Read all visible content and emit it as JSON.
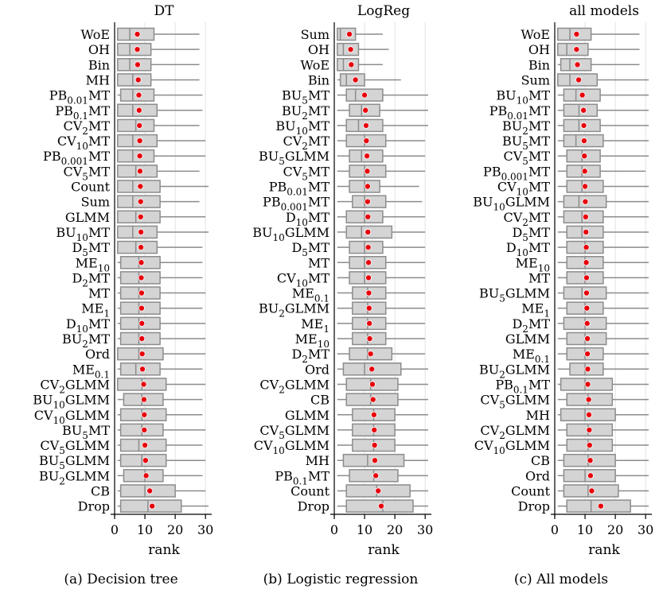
{
  "figure": {
    "captions": [
      "(a) Decision tree",
      "(b) Logistic regression",
      "(c) All models"
    ]
  },
  "chart_data": [
    {
      "type": "boxplot",
      "title": "DT",
      "xlabel": "rank",
      "xlim": [
        0,
        31
      ],
      "xticks": [
        0,
        10,
        20,
        30
      ],
      "grid": "vertical",
      "marker": "mean (red dot)",
      "categories": [
        "WoE",
        "OH",
        "Bin",
        "MH",
        "PB_{0.01}MT",
        "PB_{0.1}MT",
        "CV_{2}MT",
        "CV_{10}MT",
        "PB_{0.001}MT",
        "CV_{5}MT",
        "Count",
        "Sum",
        "GLMM",
        "BU_{10}MT",
        "D_{5}MT",
        "ME_{10}",
        "D_{2}MT",
        "MT",
        "ME_{1}",
        "D_{10}MT",
        "BU_{2}MT",
        "Ord",
        "ME_{0.1}",
        "CV_{2}GLMM",
        "BU_{10}GLMM",
        "CV_{10}GLMM",
        "BU_{5}MT",
        "CV_{5}GLMM",
        "BU_{5}GLMM",
        "BU_{2}GLMM",
        "CB",
        "Drop"
      ],
      "boxes": [
        {
          "whislo": 1,
          "q1": 1,
          "median": 5,
          "q3": 13,
          "whishi": 28,
          "mean": 7.5
        },
        {
          "whislo": 1,
          "q1": 1,
          "median": 5,
          "q3": 12,
          "whishi": 28,
          "mean": 7.5
        },
        {
          "whislo": 1,
          "q1": 1,
          "median": 5,
          "q3": 12,
          "whishi": 28,
          "mean": 7.6
        },
        {
          "whislo": 1,
          "q1": 1,
          "median": 6,
          "q3": 12,
          "whishi": 28,
          "mean": 7.8
        },
        {
          "whislo": 1,
          "q1": 2,
          "median": 6,
          "q3": 13,
          "whishi": 29,
          "mean": 8.0
        },
        {
          "whislo": 1,
          "q1": 1,
          "median": 6,
          "q3": 14,
          "whishi": 29,
          "mean": 8.1
        },
        {
          "whislo": 1,
          "q1": 1,
          "median": 7,
          "q3": 13,
          "whishi": 28,
          "mean": 8.2
        },
        {
          "whislo": 1,
          "q1": 1,
          "median": 6,
          "q3": 14,
          "whishi": 30,
          "mean": 8.3
        },
        {
          "whislo": 1,
          "q1": 1,
          "median": 6,
          "q3": 13,
          "whishi": 30,
          "mean": 8.3
        },
        {
          "whislo": 1,
          "q1": 1,
          "median": 7,
          "q3": 14,
          "whishi": 28,
          "mean": 8.4
        },
        {
          "whislo": 1,
          "q1": 1,
          "median": 6,
          "q3": 15,
          "whishi": 31,
          "mean": 8.5
        },
        {
          "whislo": 1,
          "q1": 1,
          "median": 6,
          "q3": 15,
          "whishi": 28,
          "mean": 8.6
        },
        {
          "whislo": 1,
          "q1": 1,
          "median": 7,
          "q3": 15,
          "whishi": 30,
          "mean": 8.6
        },
        {
          "whislo": 1,
          "q1": 1,
          "median": 6,
          "q3": 14,
          "whishi": 31,
          "mean": 8.7
        },
        {
          "whislo": 1,
          "q1": 1,
          "median": 7,
          "q3": 14,
          "whishi": 29,
          "mean": 8.7
        },
        {
          "whislo": 1,
          "q1": 2,
          "median": 8,
          "q3": 15,
          "whishi": 29,
          "mean": 8.8
        },
        {
          "whislo": 1,
          "q1": 2,
          "median": 8,
          "q3": 15,
          "whishi": 29,
          "mean": 8.8
        },
        {
          "whislo": 1,
          "q1": 2,
          "median": 8,
          "q3": 15,
          "whishi": 30,
          "mean": 8.9
        },
        {
          "whislo": 1,
          "q1": 2,
          "median": 8,
          "q3": 15,
          "whishi": 29,
          "mean": 8.9
        },
        {
          "whislo": 1,
          "q1": 2,
          "median": 8,
          "q3": 15,
          "whishi": 30,
          "mean": 9.0
        },
        {
          "whislo": 1,
          "q1": 2,
          "median": 8,
          "q3": 15,
          "whishi": 30,
          "mean": 9.0
        },
        {
          "whislo": 1,
          "q1": 1,
          "median": 8,
          "q3": 16,
          "whishi": 30,
          "mean": 9.1
        },
        {
          "whislo": 1,
          "q1": 2,
          "median": 7,
          "q3": 15,
          "whishi": 29,
          "mean": 9.2
        },
        {
          "whislo": 1,
          "q1": 1,
          "median": 9,
          "q3": 17,
          "whishi": 30,
          "mean": 9.6
        },
        {
          "whislo": 1,
          "q1": 3,
          "median": 9,
          "q3": 16,
          "whishi": 29,
          "mean": 9.7
        },
        {
          "whislo": 1,
          "q1": 2,
          "median": 9,
          "q3": 17,
          "whishi": 29,
          "mean": 9.8
        },
        {
          "whislo": 1,
          "q1": 2,
          "median": 9,
          "q3": 16,
          "whishi": 30,
          "mean": 9.8
        },
        {
          "whislo": 1,
          "q1": 2,
          "median": 8,
          "q3": 17,
          "whishi": 29,
          "mean": 10.0
        },
        {
          "whislo": 1,
          "q1": 2,
          "median": 9,
          "q3": 17,
          "whishi": 30,
          "mean": 10.2
        },
        {
          "whislo": 1,
          "q1": 3,
          "median": 10,
          "q3": 16,
          "whishi": 29,
          "mean": 10.4
        },
        {
          "whislo": 1,
          "q1": 2,
          "median": 10,
          "q3": 20,
          "whishi": 30,
          "mean": 11.6
        },
        {
          "whislo": 1,
          "q1": 2,
          "median": 11,
          "q3": 22,
          "whishi": 31,
          "mean": 12.4
        }
      ]
    },
    {
      "type": "boxplot",
      "title": "LogReg",
      "xlabel": "rank",
      "xlim": [
        0,
        31
      ],
      "xticks": [
        0,
        10,
        20,
        30
      ],
      "grid": "vertical",
      "marker": "mean (red dot)",
      "categories": [
        "Sum",
        "OH",
        "WoE",
        "Bin",
        "BU_{5}MT",
        "BU_{2}MT",
        "BU_{10}MT",
        "CV_{2}MT",
        "BU_{5}GLMM",
        "CV_{5}MT",
        "PB_{0.01}MT",
        "PB_{0.001}MT",
        "D_{10}MT",
        "BU_{10}GLMM",
        "D_{5}MT",
        "MT",
        "CV_{10}MT",
        "ME_{0.1}",
        "BU_{2}GLMM",
        "ME_{1}",
        "ME_{10}",
        "D_{2}MT",
        "Ord",
        "CV_{2}GLMM",
        "CB",
        "GLMM",
        "CV_{5}GLMM",
        "CV_{10}GLMM",
        "MH",
        "PB_{0.1}MT",
        "Count",
        "Drop"
      ],
      "boxes": [
        {
          "whislo": 1,
          "q1": 1,
          "median": 2,
          "q3": 7,
          "whishi": 16,
          "mean": 5.0
        },
        {
          "whislo": 1,
          "q1": 1,
          "median": 3,
          "q3": 8,
          "whishi": 18,
          "mean": 5.4
        },
        {
          "whislo": 1,
          "q1": 1,
          "median": 3,
          "q3": 8,
          "whishi": 16,
          "mean": 5.6
        },
        {
          "whislo": 1,
          "q1": 2,
          "median": 4,
          "q3": 10,
          "whishi": 22,
          "mean": 7.0
        },
        {
          "whislo": 1,
          "q1": 4,
          "median": 7,
          "q3": 16,
          "whishi": 31,
          "mean": 10.0
        },
        {
          "whislo": 1,
          "q1": 5,
          "median": 9,
          "q3": 15,
          "whishi": 31,
          "mean": 10.3
        },
        {
          "whislo": 1,
          "q1": 4,
          "median": 8,
          "q3": 16,
          "whishi": 31,
          "mean": 10.5
        },
        {
          "whislo": 1,
          "q1": 4,
          "median": 10,
          "q3": 17,
          "whishi": 30,
          "mean": 10.6
        },
        {
          "whislo": 1,
          "q1": 5,
          "median": 9,
          "q3": 16,
          "whishi": 30,
          "mean": 10.8
        },
        {
          "whislo": 1,
          "q1": 5,
          "median": 10,
          "q3": 17,
          "whishi": 30,
          "mean": 10.9
        },
        {
          "whislo": 1,
          "q1": 5,
          "median": 10,
          "q3": 15,
          "whishi": 28,
          "mean": 11.0
        },
        {
          "whislo": 1,
          "q1": 6,
          "median": 10,
          "q3": 17,
          "whishi": 29,
          "mean": 11.0
        },
        {
          "whislo": 1,
          "q1": 4,
          "median": 10,
          "q3": 16,
          "whishi": 30,
          "mean": 11.1
        },
        {
          "whislo": 1,
          "q1": 4,
          "median": 9,
          "q3": 19,
          "whishi": 30,
          "mean": 11.1
        },
        {
          "whislo": 1,
          "q1": 5,
          "median": 10,
          "q3": 16,
          "whishi": 30,
          "mean": 11.2
        },
        {
          "whislo": 1,
          "q1": 5,
          "median": 10,
          "q3": 17,
          "whishi": 30,
          "mean": 11.3
        },
        {
          "whislo": 1,
          "q1": 5,
          "median": 10,
          "q3": 17,
          "whishi": 30,
          "mean": 11.3
        },
        {
          "whislo": 1,
          "q1": 6,
          "median": 11,
          "q3": 17,
          "whishi": 30,
          "mean": 11.4
        },
        {
          "whislo": 1,
          "q1": 6,
          "median": 11,
          "q3": 17,
          "whishi": 30,
          "mean": 11.5
        },
        {
          "whislo": 1,
          "q1": 6,
          "median": 11,
          "q3": 17,
          "whishi": 30,
          "mean": 11.6
        },
        {
          "whislo": 1,
          "q1": 6,
          "median": 11,
          "q3": 17,
          "whishi": 30,
          "mean": 11.7
        },
        {
          "whislo": 1,
          "q1": 5,
          "median": 11,
          "q3": 19,
          "whishi": 30,
          "mean": 12.0
        },
        {
          "whislo": 1,
          "q1": 3,
          "median": 10,
          "q3": 22,
          "whishi": 31,
          "mean": 12.4
        },
        {
          "whislo": 1,
          "q1": 4,
          "median": 12,
          "q3": 21,
          "whishi": 31,
          "mean": 12.6
        },
        {
          "whislo": 1,
          "q1": 4,
          "median": 12,
          "q3": 21,
          "whishi": 31,
          "mean": 12.8
        },
        {
          "whislo": 1,
          "q1": 6,
          "median": 13,
          "q3": 20,
          "whishi": 31,
          "mean": 13.1
        },
        {
          "whislo": 1,
          "q1": 6,
          "median": 13,
          "q3": 20,
          "whishi": 31,
          "mean": 13.2
        },
        {
          "whislo": 1,
          "q1": 6,
          "median": 13,
          "q3": 20,
          "whishi": 31,
          "mean": 13.3
        },
        {
          "whislo": 1,
          "q1": 3,
          "median": 11,
          "q3": 23,
          "whishi": 31,
          "mean": 13.4
        },
        {
          "whislo": 1,
          "q1": 5,
          "median": 13,
          "q3": 21,
          "whishi": 31,
          "mean": 13.7
        },
        {
          "whislo": 1,
          "q1": 4,
          "median": 14,
          "q3": 25,
          "whishi": 31,
          "mean": 14.5
        },
        {
          "whislo": 1,
          "q1": 4,
          "median": 16,
          "q3": 26,
          "whishi": 31,
          "mean": 15.5
        }
      ]
    },
    {
      "type": "boxplot",
      "title": "all models",
      "xlabel": "rank",
      "xlim": [
        0,
        31
      ],
      "xticks": [
        0,
        10,
        20,
        30
      ],
      "grid": "vertical",
      "marker": "mean (red dot)",
      "categories": [
        "WoE",
        "OH",
        "Bin",
        "Sum",
        "BU_{10}MT",
        "PB_{0.01}MT",
        "BU_{2}MT",
        "BU_{5}MT",
        "CV_{5}MT",
        "PB_{0.001}MT",
        "CV_{10}MT",
        "BU_{10}GLMM",
        "CV_{2}MT",
        "D_{5}MT",
        "D_{10}MT",
        "ME_{10}",
        "MT",
        "BU_{5}GLMM",
        "ME_{1}",
        "D_{2}MT",
        "GLMM",
        "ME_{0.1}",
        "BU_{2}GLMM",
        "PB_{0.1}MT",
        "CV_{5}GLMM",
        "MH",
        "CV_{2}GLMM",
        "CV_{10}GLMM",
        "CB",
        "Ord",
        "Count",
        "Drop"
      ],
      "boxes": [
        {
          "whislo": 1,
          "q1": 1,
          "median": 5,
          "q3": 12,
          "whishi": 28,
          "mean": 7.2
        },
        {
          "whislo": 1,
          "q1": 1,
          "median": 4,
          "q3": 11,
          "whishi": 28,
          "mean": 7.2
        },
        {
          "whislo": 1,
          "q1": 2,
          "median": 5,
          "q3": 12,
          "whishi": 28,
          "mean": 7.5
        },
        {
          "whislo": 1,
          "q1": 1,
          "median": 5,
          "q3": 14,
          "whishi": 31,
          "mean": 7.9
        },
        {
          "whislo": 1,
          "q1": 3,
          "median": 7,
          "q3": 15,
          "whishi": 31,
          "mean": 9.1
        },
        {
          "whislo": 1,
          "q1": 3,
          "median": 8,
          "q3": 14,
          "whishi": 31,
          "mean": 9.5
        },
        {
          "whislo": 1,
          "q1": 3,
          "median": 8,
          "q3": 15,
          "whishi": 31,
          "mean": 9.6
        },
        {
          "whislo": 1,
          "q1": 3,
          "median": 7,
          "q3": 16,
          "whishi": 31,
          "mean": 9.7
        },
        {
          "whislo": 1,
          "q1": 4,
          "median": 9,
          "q3": 15,
          "whishi": 31,
          "mean": 9.8
        },
        {
          "whislo": 1,
          "q1": 4,
          "median": 9,
          "q3": 15,
          "whishi": 30,
          "mean": 9.9
        },
        {
          "whislo": 1,
          "q1": 4,
          "median": 9,
          "q3": 16,
          "whishi": 31,
          "mean": 10.0
        },
        {
          "whislo": 1,
          "q1": 3,
          "median": 8,
          "q3": 17,
          "whishi": 31,
          "mean": 10.1
        },
        {
          "whislo": 1,
          "q1": 3,
          "median": 9,
          "q3": 16,
          "whishi": 31,
          "mean": 10.2
        },
        {
          "whislo": 1,
          "q1": 4,
          "median": 9,
          "q3": 16,
          "whishi": 31,
          "mean": 10.3
        },
        {
          "whislo": 1,
          "q1": 4,
          "median": 10,
          "q3": 16,
          "whishi": 31,
          "mean": 10.4
        },
        {
          "whislo": 1,
          "q1": 4,
          "median": 10,
          "q3": 16,
          "whishi": 31,
          "mean": 10.4
        },
        {
          "whislo": 1,
          "q1": 4,
          "median": 10,
          "q3": 16,
          "whishi": 31,
          "mean": 10.5
        },
        {
          "whislo": 1,
          "q1": 3,
          "median": 9,
          "q3": 17,
          "whishi": 31,
          "mean": 10.5
        },
        {
          "whislo": 1,
          "q1": 4,
          "median": 10,
          "q3": 16,
          "whishi": 31,
          "mean": 10.6
        },
        {
          "whislo": 1,
          "q1": 3,
          "median": 10,
          "q3": 17,
          "whishi": 31,
          "mean": 10.7
        },
        {
          "whislo": 1,
          "q1": 4,
          "median": 10,
          "q3": 17,
          "whishi": 31,
          "mean": 10.8
        },
        {
          "whislo": 1,
          "q1": 4,
          "median": 10,
          "q3": 16,
          "whishi": 31,
          "mean": 10.8
        },
        {
          "whislo": 1,
          "q1": 5,
          "median": 10,
          "q3": 16,
          "whishi": 31,
          "mean": 10.9
        },
        {
          "whislo": 1,
          "q1": 2,
          "median": 10,
          "q3": 19,
          "whishi": 31,
          "mean": 10.9
        },
        {
          "whislo": 1,
          "q1": 4,
          "median": 11,
          "q3": 19,
          "whishi": 31,
          "mean": 11.2
        },
        {
          "whislo": 1,
          "q1": 2,
          "median": 10,
          "q3": 20,
          "whishi": 31,
          "mean": 11.3
        },
        {
          "whislo": 1,
          "q1": 4,
          "median": 11,
          "q3": 19,
          "whishi": 31,
          "mean": 11.4
        },
        {
          "whislo": 1,
          "q1": 4,
          "median": 11,
          "q3": 19,
          "whishi": 31,
          "mean": 11.5
        },
        {
          "whislo": 1,
          "q1": 3,
          "median": 11,
          "q3": 20,
          "whishi": 31,
          "mean": 11.7
        },
        {
          "whislo": 1,
          "q1": 3,
          "median": 10,
          "q3": 20,
          "whishi": 31,
          "mean": 11.8
        },
        {
          "whislo": 1,
          "q1": 3,
          "median": 11,
          "q3": 21,
          "whishi": 31,
          "mean": 12.2
        },
        {
          "whislo": 1,
          "q1": 4,
          "median": 12,
          "q3": 25,
          "whishi": 31,
          "mean": 15.2
        }
      ]
    }
  ]
}
